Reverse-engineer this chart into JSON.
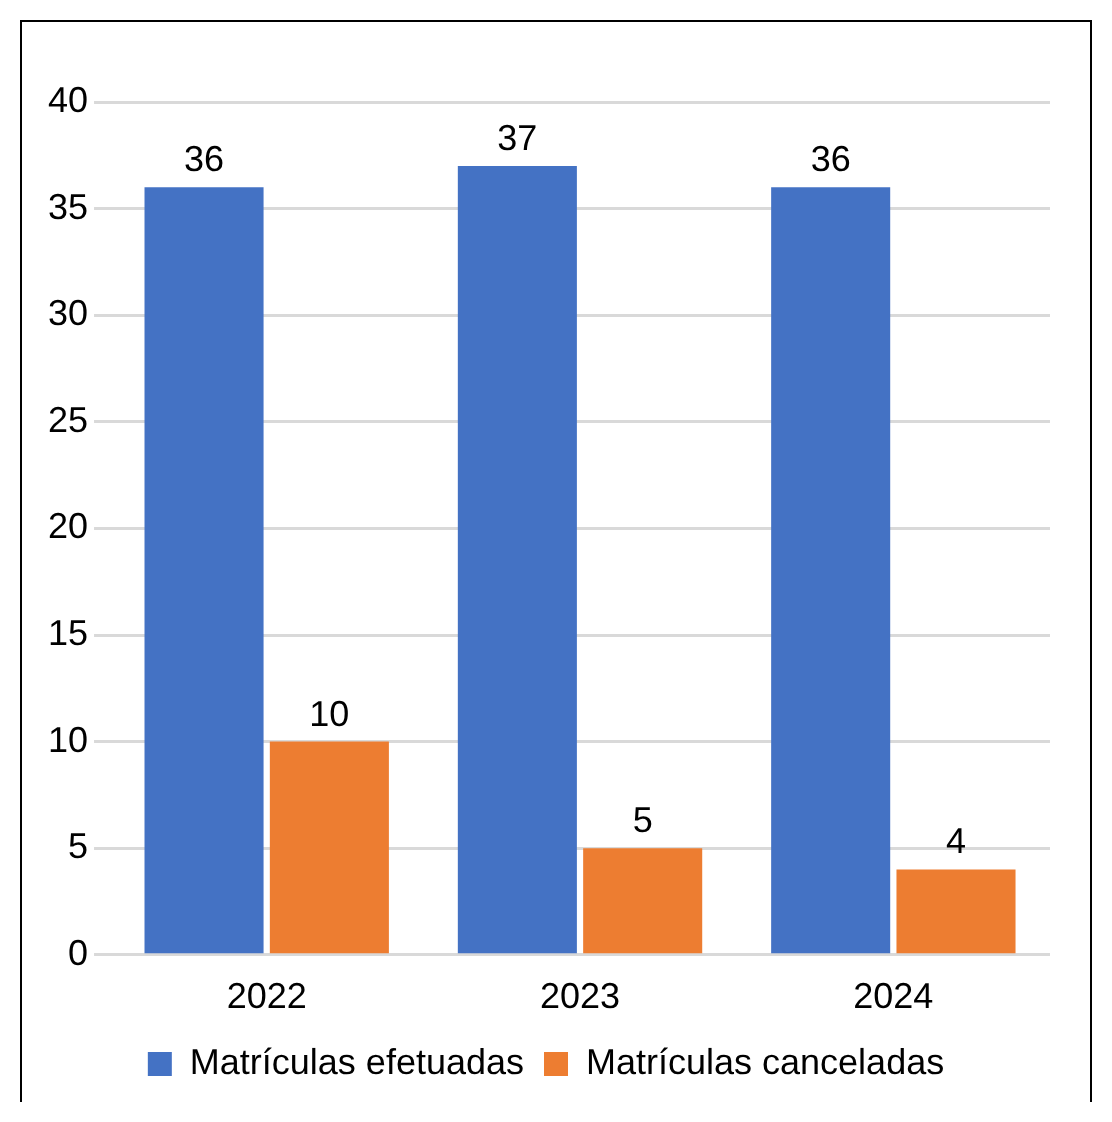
{
  "chart_data": {
    "type": "bar",
    "categories": [
      "2022",
      "2023",
      "2024"
    ],
    "series": [
      {
        "name": "Matrículas efetuadas",
        "color": "#4472c4",
        "values": [
          36,
          37,
          36
        ]
      },
      {
        "name": "Matrículas canceladas",
        "color": "#ed7d31",
        "values": [
          10,
          5,
          4
        ]
      }
    ],
    "ylim": [
      0,
      40
    ],
    "yticks": [
      0,
      5,
      10,
      15,
      20,
      25,
      30,
      35,
      40
    ],
    "grid": "y",
    "legend": "bottom",
    "data_labels": true
  }
}
